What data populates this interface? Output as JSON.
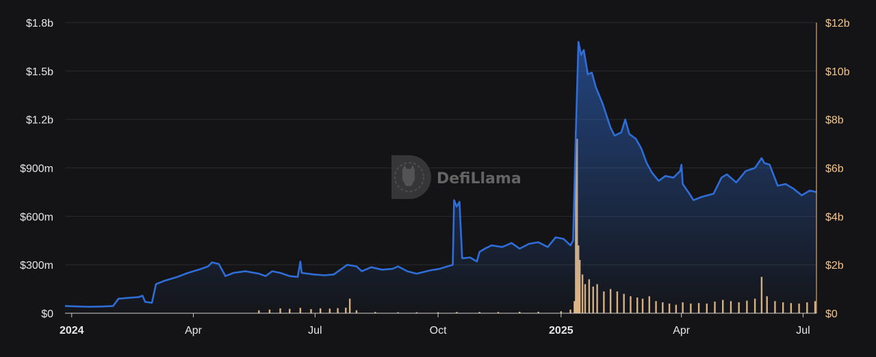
{
  "watermark": {
    "text": "DefiLlama"
  },
  "colors": {
    "background": "#141416",
    "tvl_line": "#2f6ed8",
    "volume_bar": "#f5c48a",
    "grid": "#2a2a2d"
  },
  "chart_data": {
    "type": "line",
    "title": "",
    "xlabel": "",
    "ylabel_left": "",
    "ylabel_right": "",
    "x_range": [
      "2023-12-27",
      "2025-07-11"
    ],
    "ylim_left": [
      0,
      1800000000
    ],
    "ylim_right": [
      0,
      12000000000
    ],
    "grid": "horizontal",
    "legend": "none",
    "left_ticks": [
      {
        "value": 0,
        "label": "$0"
      },
      {
        "value": 300000000,
        "label": "$300m"
      },
      {
        "value": 600000000,
        "label": "$600m"
      },
      {
        "value": 900000000,
        "label": "$900m"
      },
      {
        "value": 1200000000,
        "label": "$1.2b"
      },
      {
        "value": 1500000000,
        "label": "$1.5b"
      },
      {
        "value": 1800000000,
        "label": "$1.8b"
      }
    ],
    "right_ticks": [
      {
        "value": 0,
        "label": "$0"
      },
      {
        "value": 2000000000,
        "label": "$2b"
      },
      {
        "value": 4000000000,
        "label": "$4b"
      },
      {
        "value": 6000000000,
        "label": "$6b"
      },
      {
        "value": 8000000000,
        "label": "$8b"
      },
      {
        "value": 10000000000,
        "label": "$10b"
      },
      {
        "value": 12000000000,
        "label": "$12b"
      }
    ],
    "x_ticks": [
      {
        "date": "2024-01-01",
        "label": "2024",
        "bold": true
      },
      {
        "date": "2024-04-01",
        "label": "Apr",
        "bold": false
      },
      {
        "date": "2024-07-01",
        "label": "Jul",
        "bold": false
      },
      {
        "date": "2024-10-01",
        "label": "Oct",
        "bold": false
      },
      {
        "date": "2025-01-01",
        "label": "2025",
        "bold": true
      },
      {
        "date": "2025-04-01",
        "label": "Apr",
        "bold": false
      },
      {
        "date": "2025-07-01",
        "label": "Jul",
        "bold": false
      }
    ],
    "series": [
      {
        "axis": "left",
        "type": "area-line",
        "values": [
          [
            "2023-12-27",
            45000000
          ],
          [
            "2024-01-05",
            42000000
          ],
          [
            "2024-01-15",
            40000000
          ],
          [
            "2024-01-25",
            42000000
          ],
          [
            "2024-02-01",
            45000000
          ],
          [
            "2024-02-05",
            90000000
          ],
          [
            "2024-02-12",
            95000000
          ],
          [
            "2024-02-20",
            100000000
          ],
          [
            "2024-02-23",
            108000000
          ],
          [
            "2024-02-25",
            70000000
          ],
          [
            "2024-03-01",
            65000000
          ],
          [
            "2024-03-04",
            180000000
          ],
          [
            "2024-03-10",
            200000000
          ],
          [
            "2024-03-20",
            225000000
          ],
          [
            "2024-03-28",
            250000000
          ],
          [
            "2024-04-05",
            270000000
          ],
          [
            "2024-04-12",
            290000000
          ],
          [
            "2024-04-15",
            315000000
          ],
          [
            "2024-04-20",
            305000000
          ],
          [
            "2024-04-25",
            230000000
          ],
          [
            "2024-05-01",
            250000000
          ],
          [
            "2024-05-10",
            260000000
          ],
          [
            "2024-05-20",
            245000000
          ],
          [
            "2024-05-25",
            230000000
          ],
          [
            "2024-05-30",
            260000000
          ],
          [
            "2024-06-05",
            250000000
          ],
          [
            "2024-06-12",
            230000000
          ],
          [
            "2024-06-18",
            225000000
          ],
          [
            "2024-06-20",
            320000000
          ],
          [
            "2024-06-21",
            250000000
          ],
          [
            "2024-06-30",
            240000000
          ],
          [
            "2024-07-08",
            235000000
          ],
          [
            "2024-07-15",
            240000000
          ],
          [
            "2024-07-20",
            270000000
          ],
          [
            "2024-07-25",
            300000000
          ],
          [
            "2024-08-01",
            290000000
          ],
          [
            "2024-08-05",
            260000000
          ],
          [
            "2024-08-12",
            285000000
          ],
          [
            "2024-08-20",
            270000000
          ],
          [
            "2024-08-28",
            275000000
          ],
          [
            "2024-09-01",
            290000000
          ],
          [
            "2024-09-08",
            260000000
          ],
          [
            "2024-09-15",
            245000000
          ],
          [
            "2024-09-25",
            265000000
          ],
          [
            "2024-10-02",
            275000000
          ],
          [
            "2024-10-08",
            290000000
          ],
          [
            "2024-10-12",
            300000000
          ],
          [
            "2024-10-13",
            700000000
          ],
          [
            "2024-10-15",
            660000000
          ],
          [
            "2024-10-17",
            690000000
          ],
          [
            "2024-10-19",
            340000000
          ],
          [
            "2024-10-25",
            345000000
          ],
          [
            "2024-10-30",
            320000000
          ],
          [
            "2024-11-01",
            380000000
          ],
          [
            "2024-11-05",
            400000000
          ],
          [
            "2024-11-10",
            420000000
          ],
          [
            "2024-11-18",
            410000000
          ],
          [
            "2024-11-25",
            435000000
          ],
          [
            "2024-12-01",
            400000000
          ],
          [
            "2024-12-08",
            430000000
          ],
          [
            "2024-12-15",
            440000000
          ],
          [
            "2024-12-22",
            410000000
          ],
          [
            "2024-12-28",
            470000000
          ],
          [
            "2025-01-03",
            460000000
          ],
          [
            "2025-01-08",
            420000000
          ],
          [
            "2025-01-10",
            450000000
          ],
          [
            "2025-01-12",
            1100000000
          ],
          [
            "2025-01-14",
            1680000000
          ],
          [
            "2025-01-16",
            1600000000
          ],
          [
            "2025-01-18",
            1630000000
          ],
          [
            "2025-01-21",
            1480000000
          ],
          [
            "2025-01-24",
            1490000000
          ],
          [
            "2025-01-27",
            1400000000
          ],
          [
            "2025-02-01",
            1300000000
          ],
          [
            "2025-02-07",
            1150000000
          ],
          [
            "2025-02-10",
            1100000000
          ],
          [
            "2025-02-15",
            1120000000
          ],
          [
            "2025-02-18",
            1200000000
          ],
          [
            "2025-02-21",
            1110000000
          ],
          [
            "2025-02-26",
            1080000000
          ],
          [
            "2025-03-02",
            1020000000
          ],
          [
            "2025-03-06",
            930000000
          ],
          [
            "2025-03-10",
            870000000
          ],
          [
            "2025-03-15",
            820000000
          ],
          [
            "2025-03-20",
            850000000
          ],
          [
            "2025-03-26",
            840000000
          ],
          [
            "2025-03-31",
            880000000
          ],
          [
            "2025-04-01",
            920000000
          ],
          [
            "2025-04-02",
            800000000
          ],
          [
            "2025-04-07",
            740000000
          ],
          [
            "2025-04-10",
            700000000
          ],
          [
            "2025-04-16",
            720000000
          ],
          [
            "2025-04-25",
            740000000
          ],
          [
            "2025-05-01",
            840000000
          ],
          [
            "2025-05-05",
            860000000
          ],
          [
            "2025-05-12",
            810000000
          ],
          [
            "2025-05-19",
            880000000
          ],
          [
            "2025-05-26",
            900000000
          ],
          [
            "2025-05-31",
            960000000
          ],
          [
            "2025-06-02",
            930000000
          ],
          [
            "2025-06-06",
            920000000
          ],
          [
            "2025-06-12",
            790000000
          ],
          [
            "2025-06-18",
            800000000
          ],
          [
            "2025-06-24",
            770000000
          ],
          [
            "2025-06-30",
            730000000
          ],
          [
            "2025-07-06",
            760000000
          ],
          [
            "2025-07-11",
            750000000
          ]
        ]
      },
      {
        "axis": "right",
        "type": "bar",
        "values": [
          [
            "2024-05-20",
            120000000
          ],
          [
            "2024-05-28",
            150000000
          ],
          [
            "2024-06-05",
            200000000
          ],
          [
            "2024-06-12",
            180000000
          ],
          [
            "2024-06-20",
            220000000
          ],
          [
            "2024-06-28",
            170000000
          ],
          [
            "2024-07-05",
            200000000
          ],
          [
            "2024-07-12",
            190000000
          ],
          [
            "2024-07-18",
            210000000
          ],
          [
            "2024-07-24",
            230000000
          ],
          [
            "2024-07-27",
            600000000
          ],
          [
            "2024-08-01",
            120000000
          ],
          [
            "2024-08-15",
            50000000
          ],
          [
            "2024-09-01",
            40000000
          ],
          [
            "2024-09-15",
            40000000
          ],
          [
            "2024-10-01",
            40000000
          ],
          [
            "2024-10-15",
            50000000
          ],
          [
            "2024-11-01",
            50000000
          ],
          [
            "2024-11-15",
            50000000
          ],
          [
            "2024-12-01",
            60000000
          ],
          [
            "2024-12-15",
            60000000
          ],
          [
            "2025-01-01",
            80000000
          ],
          [
            "2025-01-08",
            150000000
          ],
          [
            "2025-01-11",
            500000000
          ],
          [
            "2025-01-12",
            7500000000
          ],
          [
            "2025-01-13",
            7200000000
          ],
          [
            "2025-01-14",
            2800000000
          ],
          [
            "2025-01-15",
            2200000000
          ],
          [
            "2025-01-17",
            1600000000
          ],
          [
            "2025-01-19",
            1200000000
          ],
          [
            "2025-01-22",
            1400000000
          ],
          [
            "2025-01-25",
            1100000000
          ],
          [
            "2025-01-28",
            1200000000
          ],
          [
            "2025-02-02",
            900000000
          ],
          [
            "2025-02-07",
            1000000000
          ],
          [
            "2025-02-12",
            900000000
          ],
          [
            "2025-02-17",
            800000000
          ],
          [
            "2025-02-22",
            700000000
          ],
          [
            "2025-02-27",
            650000000
          ],
          [
            "2025-03-03",
            600000000
          ],
          [
            "2025-03-08",
            700000000
          ],
          [
            "2025-03-13",
            500000000
          ],
          [
            "2025-03-18",
            450000000
          ],
          [
            "2025-03-23",
            400000000
          ],
          [
            "2025-03-28",
            350000000
          ],
          [
            "2025-04-02",
            450000000
          ],
          [
            "2025-04-08",
            400000000
          ],
          [
            "2025-04-14",
            420000000
          ],
          [
            "2025-04-20",
            400000000
          ],
          [
            "2025-04-26",
            480000000
          ],
          [
            "2025-05-02",
            550000000
          ],
          [
            "2025-05-08",
            500000000
          ],
          [
            "2025-05-14",
            450000000
          ],
          [
            "2025-05-20",
            520000000
          ],
          [
            "2025-05-26",
            600000000
          ],
          [
            "2025-05-31",
            1500000000
          ],
          [
            "2025-06-04",
            700000000
          ],
          [
            "2025-06-10",
            500000000
          ],
          [
            "2025-06-16",
            450000000
          ],
          [
            "2025-06-22",
            420000000
          ],
          [
            "2025-06-28",
            400000000
          ],
          [
            "2025-07-04",
            450000000
          ],
          [
            "2025-07-10",
            500000000
          ]
        ]
      }
    ]
  }
}
